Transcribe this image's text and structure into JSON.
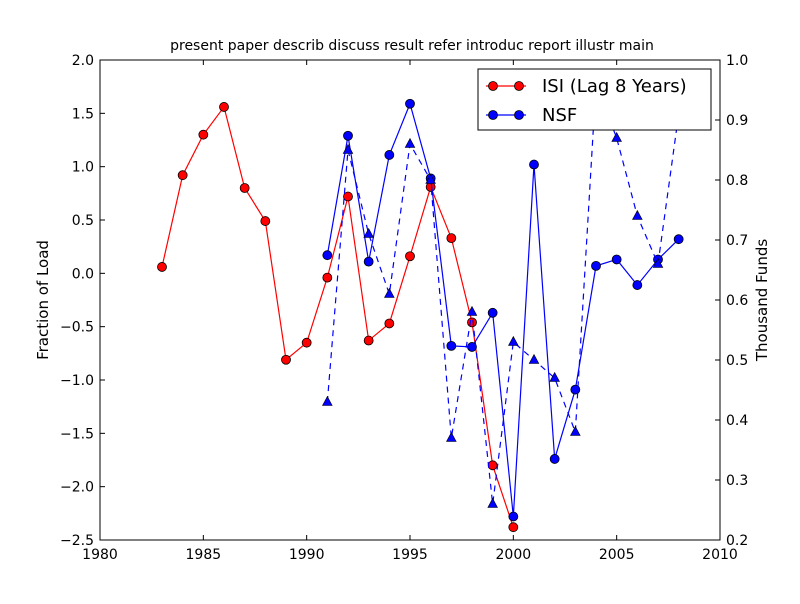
{
  "chart_data": {
    "type": "line",
    "title": "present paper describ discuss result refer introduc report illustr main",
    "xlabel": "",
    "ylabel": "Fraction of Load",
    "y2label": "Thousand Funds",
    "xlim": [
      1980,
      2010
    ],
    "ylim": [
      -2.5,
      2.0
    ],
    "y2lim": [
      0.2,
      1.0
    ],
    "x_ticks": [
      "1980",
      "1985",
      "1990",
      "1995",
      "2000",
      "2005",
      "2010"
    ],
    "y_ticks": [
      "2.0",
      "1.5",
      "1.0",
      "0.5",
      "0.0",
      "−0.5",
      "−1.0",
      "−1.5",
      "−2.0",
      "−2.5"
    ],
    "y2_ticks": [
      "1.0",
      "0.9",
      "0.8",
      "0.7",
      "0.6",
      "0.5",
      "0.4",
      "0.3",
      "0.2"
    ],
    "grid": false,
    "legend_position": "top-right",
    "series": [
      {
        "name": "ISI (Lag 8 Years)",
        "color": "#ff0000",
        "axis": "left",
        "marker": "circle",
        "linestyle": "solid",
        "x": [
          1983,
          1984,
          1985,
          1986,
          1987,
          1988,
          1989,
          1990,
          1991,
          1992,
          1993,
          1994,
          1995,
          1996,
          1997,
          1998,
          1999,
          2000
        ],
        "values": [
          0.06,
          0.92,
          1.3,
          1.56,
          0.8,
          0.49,
          -0.81,
          -0.65,
          -0.04,
          0.72,
          -0.63,
          -0.47,
          0.16,
          0.81,
          0.33,
          -0.46,
          -1.8,
          -2.38
        ]
      },
      {
        "name": "NSF",
        "color": "#0000ff",
        "axis": "left",
        "marker": "circle",
        "linestyle": "solid",
        "x": [
          1991,
          1992,
          1993,
          1994,
          1995,
          1996,
          1997,
          1998,
          1999,
          2000,
          2001,
          2002,
          2003,
          2004,
          2005,
          2006,
          2007,
          2008
        ],
        "values": [
          0.17,
          1.29,
          0.11,
          1.11,
          1.59,
          0.89,
          -0.68,
          -0.69,
          -0.37,
          -2.28,
          1.02,
          -1.74,
          -1.09,
          0.07,
          0.13,
          -0.11,
          0.13,
          0.32
        ]
      },
      {
        "name": "",
        "color": "#0000ff",
        "axis": "right",
        "marker": "triangle",
        "linestyle": "dashed",
        "x": [
          1991,
          1992,
          1993,
          1994,
          1995,
          1996,
          1997,
          1998,
          1999,
          2000,
          2001,
          2002,
          2003,
          2004,
          2005,
          2006,
          2007,
          2008
        ],
        "values": [
          0.43,
          0.85,
          0.71,
          0.61,
          0.86,
          0.8,
          0.37,
          0.58,
          0.26,
          0.53,
          0.5,
          0.47,
          0.38,
          0.96,
          0.87,
          0.74,
          0.66,
          0.91
        ]
      }
    ]
  }
}
